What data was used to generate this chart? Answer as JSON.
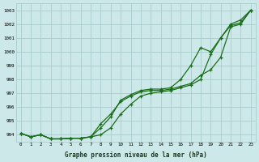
{
  "bg_color": "#cde8e8",
  "grid_color": "#aacccc",
  "line_color": "#1a6e1a",
  "marker_color": "#1a6e1a",
  "title": "Graphe pression niveau de la mer (hPa)",
  "ylabel_values": [
    994,
    995,
    996,
    997,
    998,
    999,
    1000,
    1001,
    1002,
    1003
  ],
  "xlim": [
    -0.5,
    23.5
  ],
  "ylim": [
    993.5,
    1003.5
  ],
  "xticks": [
    0,
    1,
    2,
    3,
    4,
    5,
    6,
    7,
    8,
    9,
    10,
    11,
    12,
    13,
    14,
    15,
    16,
    17,
    18,
    19,
    20,
    21,
    22,
    23
  ],
  "line1_x": [
    0,
    1,
    2,
    3,
    4,
    5,
    6,
    7,
    8,
    9,
    10,
    11,
    12,
    13,
    14,
    15,
    16,
    17,
    18,
    19,
    20,
    21,
    22,
    23
  ],
  "line1_y": [
    994.1,
    993.85,
    994.0,
    993.7,
    993.7,
    993.75,
    993.75,
    993.85,
    994.8,
    995.5,
    996.4,
    996.8,
    997.1,
    997.2,
    997.2,
    997.3,
    997.5,
    997.7,
    998.3,
    998.7,
    999.6,
    1001.8,
    1002.0,
    1003.0
  ],
  "line2_x": [
    0,
    1,
    2,
    3,
    4,
    5,
    6,
    7,
    8,
    9,
    10,
    11,
    12,
    13,
    14,
    15,
    16,
    17,
    18,
    19,
    20,
    21,
    22,
    23
  ],
  "line2_y": [
    994.1,
    993.85,
    994.0,
    993.7,
    993.7,
    993.75,
    993.75,
    993.85,
    994.5,
    995.3,
    996.5,
    996.9,
    997.2,
    997.3,
    997.3,
    997.4,
    998.0,
    999.0,
    1000.3,
    1000.0,
    1001.0,
    1001.9,
    1002.1,
    1003.0
  ],
  "line3_x": [
    0,
    1,
    2,
    3,
    4,
    5,
    6,
    7,
    8,
    9,
    10,
    11,
    12,
    13,
    14,
    15,
    16,
    17,
    18,
    19,
    20,
    21,
    22,
    23
  ],
  "line3_y": [
    994.1,
    993.85,
    994.0,
    993.7,
    993.7,
    993.75,
    993.75,
    993.85,
    994.0,
    994.5,
    995.5,
    996.2,
    996.8,
    997.0,
    997.1,
    997.2,
    997.4,
    997.6,
    998.0,
    999.8,
    1001.0,
    1002.0,
    1002.3,
    1003.0
  ]
}
